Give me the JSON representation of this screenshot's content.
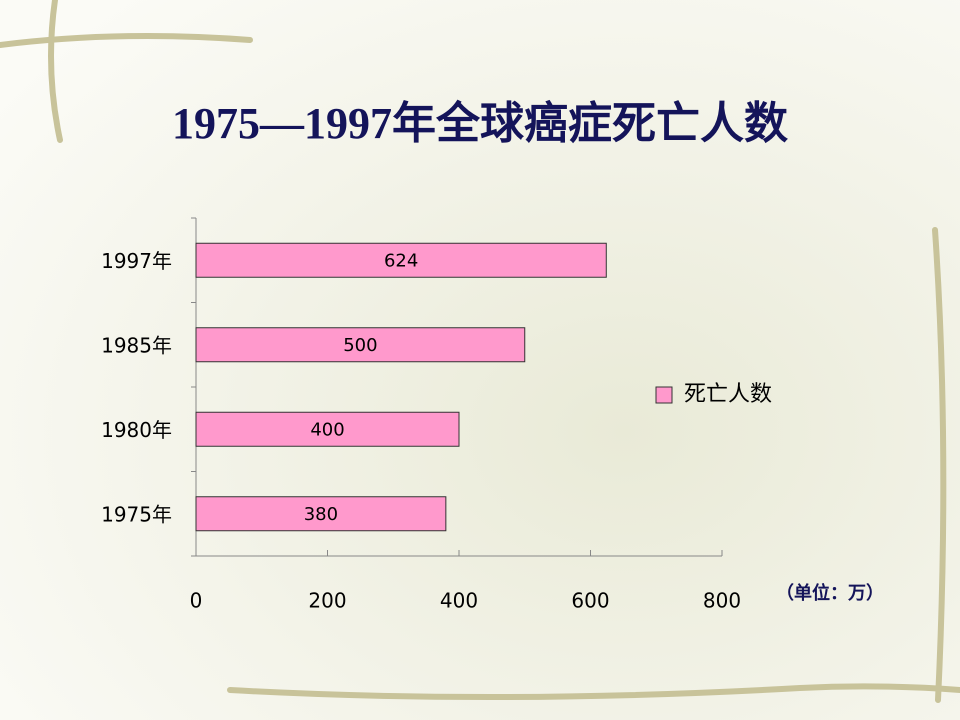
{
  "chart_data": {
    "type": "bar",
    "orientation": "horizontal",
    "title": "1975—1997年全球癌症死亡人数",
    "categories": [
      "1975年",
      "1980年",
      "1985年",
      "1997年"
    ],
    "series": [
      {
        "name": "死亡人数",
        "color": "#ff99cc",
        "values": [
          380,
          400,
          500,
          624
        ]
      }
    ],
    "xlim": [
      0,
      800
    ],
    "xticks": [
      0,
      200,
      400,
      600,
      800
    ],
    "unit_note": "（单位：万）",
    "legend": "right"
  }
}
